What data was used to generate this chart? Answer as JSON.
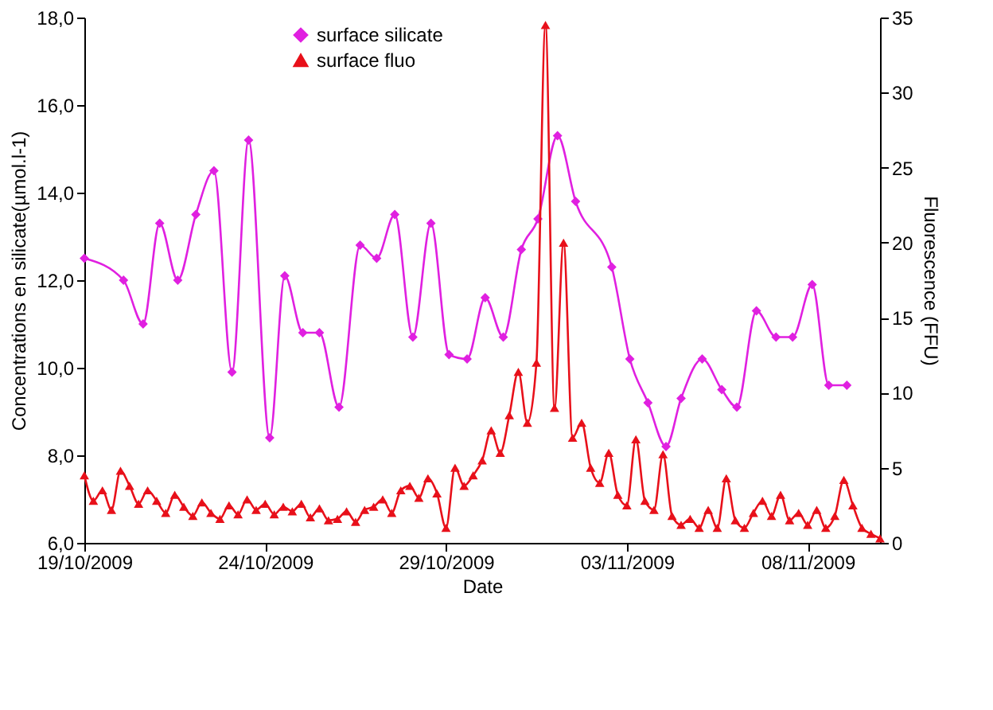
{
  "chart_data": {
    "type": "line",
    "xlabel": "Date",
    "ylabel": "Concentrations en silicate(µmol.l-1)",
    "y2label": "Fluorescence (FFU)",
    "legend": "top",
    "grid": false,
    "line_style": "solid",
    "xlim": [
      "2009-10-19",
      "2009-11-10"
    ],
    "xticks": [
      {
        "value": "2009-10-19",
        "label": "19/10/2009"
      },
      {
        "value": "2009-10-24",
        "label": "24/10/2009"
      },
      {
        "value": "2009-10-29",
        "label": "29/10/2009"
      },
      {
        "value": "2009-11-03",
        "label": "03/11/2009"
      },
      {
        "value": "2009-11-08",
        "label": "08/11/2009"
      }
    ],
    "ylim": [
      6,
      18
    ],
    "yticks": [
      {
        "value": 6,
        "label": "6,0"
      },
      {
        "value": 8,
        "label": "8,0"
      },
      {
        "value": 10,
        "label": "10,0"
      },
      {
        "value": 12,
        "label": "12,0"
      },
      {
        "value": 14,
        "label": "14,0"
      },
      {
        "value": 16,
        "label": "16,0"
      },
      {
        "value": 18,
        "label": "18,0"
      }
    ],
    "y2lim": [
      0,
      35
    ],
    "y2ticks": [
      0,
      5,
      10,
      15,
      20,
      25,
      30,
      35
    ],
    "series": [
      {
        "name": "surface silicate",
        "color": "#e020e0",
        "marker": "diamond",
        "x": [
          "2009-10-19T00:00",
          "2009-10-20T02:00",
          "2009-10-20T15:00",
          "2009-10-21T02:00",
          "2009-10-21T14:00",
          "2009-10-22T02:00",
          "2009-10-22T14:00",
          "2009-10-23T02:00",
          "2009-10-23T13:00",
          "2009-10-24T03:00",
          "2009-10-24T13:00",
          "2009-10-25T01:00",
          "2009-10-25T12:00",
          "2009-10-26T01:00",
          "2009-10-26T15:00",
          "2009-10-27T02:00",
          "2009-10-27T14:00",
          "2009-10-28T02:00",
          "2009-10-28T14:00",
          "2009-10-29T02:00",
          "2009-10-29T14:00",
          "2009-10-30T02:00",
          "2009-10-30T14:00",
          "2009-10-31T02:00",
          "2009-10-31T13:00",
          "2009-11-01T02:00",
          "2009-11-01T14:00",
          "2009-11-02T14:00",
          "2009-11-03T02:00",
          "2009-11-03T14:00",
          "2009-11-04T02:00",
          "2009-11-04T12:00",
          "2009-11-05T02:00",
          "2009-11-05T15:00",
          "2009-11-06T01:00",
          "2009-11-06T14:00",
          "2009-11-07T03:00",
          "2009-11-07T14:00",
          "2009-11-08T03:00",
          "2009-11-08T14:00",
          "2009-11-09T02:00"
        ],
        "values": [
          12.5,
          12.0,
          11.0,
          13.3,
          12.0,
          13.5,
          14.5,
          9.9,
          15.2,
          8.4,
          12.1,
          10.8,
          10.8,
          9.1,
          12.8,
          12.5,
          13.5,
          10.7,
          13.3,
          10.3,
          10.2,
          11.6,
          10.7,
          12.7,
          13.4,
          15.3,
          13.8,
          12.3,
          10.2,
          9.2,
          8.2,
          9.3,
          10.2,
          9.5,
          9.1,
          11.3,
          10.7,
          10.7,
          11.9,
          9.6,
          9.6
        ]
      },
      {
        "name": "surface fluo",
        "color": "#e8101a",
        "marker": "triangle",
        "axis": "y2",
        "x": [
          "2009-10-19T00:00",
          "2009-10-19T06:00",
          "2009-10-19T12:00",
          "2009-10-19T18:00",
          "2009-10-20T00:00",
          "2009-10-20T06:00",
          "2009-10-20T12:00",
          "2009-10-20T18:00",
          "2009-10-21T00:00",
          "2009-10-21T06:00",
          "2009-10-21T12:00",
          "2009-10-21T18:00",
          "2009-10-22T00:00",
          "2009-10-22T06:00",
          "2009-10-22T12:00",
          "2009-10-22T18:00",
          "2009-10-23T00:00",
          "2009-10-23T06:00",
          "2009-10-23T12:00",
          "2009-10-23T18:00",
          "2009-10-24T00:00",
          "2009-10-24T06:00",
          "2009-10-24T12:00",
          "2009-10-24T18:00",
          "2009-10-25T00:00",
          "2009-10-25T06:00",
          "2009-10-25T12:00",
          "2009-10-25T18:00",
          "2009-10-26T00:00",
          "2009-10-26T06:00",
          "2009-10-26T12:00",
          "2009-10-26T18:00",
          "2009-10-27T00:00",
          "2009-10-27T06:00",
          "2009-10-27T12:00",
          "2009-10-27T18:00",
          "2009-10-28T00:00",
          "2009-10-28T06:00",
          "2009-10-28T12:00",
          "2009-10-28T18:00",
          "2009-10-29T00:00",
          "2009-10-29T06:00",
          "2009-10-29T12:00",
          "2009-10-29T18:00",
          "2009-10-30T00:00",
          "2009-10-30T06:00",
          "2009-10-30T12:00",
          "2009-10-30T18:00",
          "2009-10-31T00:00",
          "2009-10-31T06:00",
          "2009-10-31T12:00",
          "2009-10-31T18:00",
          "2009-11-01T00:00",
          "2009-11-01T06:00",
          "2009-11-01T12:00",
          "2009-11-01T18:00",
          "2009-11-02T00:00",
          "2009-11-02T06:00",
          "2009-11-02T12:00",
          "2009-11-02T18:00",
          "2009-11-03T00:00",
          "2009-11-03T06:00",
          "2009-11-03T12:00",
          "2009-11-03T18:00",
          "2009-11-04T00:00",
          "2009-11-04T06:00",
          "2009-11-04T12:00",
          "2009-11-04T18:00",
          "2009-11-05T00:00",
          "2009-11-05T06:00",
          "2009-11-05T12:00",
          "2009-11-05T18:00",
          "2009-11-06T00:00",
          "2009-11-06T06:00",
          "2009-11-06T12:00",
          "2009-11-06T18:00",
          "2009-11-07T00:00",
          "2009-11-07T06:00",
          "2009-11-07T12:00",
          "2009-11-07T18:00",
          "2009-11-08T00:00",
          "2009-11-08T06:00",
          "2009-11-08T12:00",
          "2009-11-08T18:00",
          "2009-11-09T00:00",
          "2009-11-09T06:00",
          "2009-11-09T12:00",
          "2009-11-09T18:00",
          "2009-11-10T00:00"
        ],
        "values": [
          4.5,
          2.8,
          3.5,
          2.2,
          4.8,
          3.8,
          2.6,
          3.5,
          2.8,
          2.0,
          3.2,
          2.4,
          1.8,
          2.7,
          2.0,
          1.6,
          2.5,
          1.9,
          2.9,
          2.2,
          2.6,
          1.9,
          2.4,
          2.1,
          2.6,
          1.7,
          2.3,
          1.5,
          1.6,
          2.1,
          1.4,
          2.2,
          2.4,
          2.9,
          2.0,
          3.5,
          3.8,
          3.0,
          4.3,
          3.3,
          1.0,
          5.0,
          3.8,
          4.5,
          5.5,
          7.5,
          6.0,
          8.5,
          11.4,
          8.0,
          12.0,
          34.5,
          9.0,
          20.0,
          7.0,
          8.0,
          5.0,
          4.0,
          6.0,
          3.2,
          2.5,
          6.9,
          2.8,
          2.2,
          5.9,
          1.8,
          1.2,
          1.6,
          1.0,
          2.2,
          1.0,
          4.3,
          1.5,
          1.0,
          2.0,
          2.8,
          1.8,
          3.2,
          1.5,
          2.0,
          1.2,
          2.2,
          1.0,
          1.8,
          4.2,
          2.5,
          1.0,
          0.6,
          0.3
        ]
      }
    ]
  }
}
